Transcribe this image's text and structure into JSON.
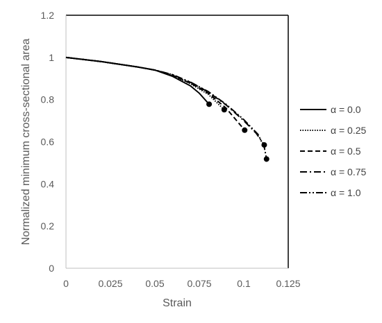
{
  "chart_data": {
    "type": "line",
    "xlabel": "Strain",
    "ylabel": "Normalized minimum cross-sectional area",
    "xlim": [
      0,
      0.125
    ],
    "ylim": [
      0,
      1.2
    ],
    "x_ticks": [
      "0",
      "0.025",
      "0.05",
      "0.075",
      "0.1",
      "0.125"
    ],
    "y_ticks": [
      "0",
      "0.2",
      "0.4",
      "0.6",
      "0.8",
      "1",
      "1.2"
    ],
    "grid": false,
    "legend_position": "right",
    "series": [
      {
        "name": "α = 0.0",
        "dash": "solid",
        "points": [
          [
            0,
            1.0
          ],
          [
            0.02,
            0.98
          ],
          [
            0.04,
            0.955
          ],
          [
            0.05,
            0.94
          ],
          [
            0.06,
            0.91
          ],
          [
            0.07,
            0.865
          ],
          [
            0.075,
            0.83
          ],
          [
            0.0805,
            0.778
          ]
        ],
        "end_marker": [
          0.0805,
          0.778
        ]
      },
      {
        "name": "α = 0.25",
        "dash": "dotted",
        "points": [
          [
            0,
            1.0
          ],
          [
            0.02,
            0.98
          ],
          [
            0.04,
            0.955
          ],
          [
            0.05,
            0.94
          ],
          [
            0.06,
            0.915
          ],
          [
            0.07,
            0.875
          ],
          [
            0.08,
            0.825
          ],
          [
            0.089,
            0.752
          ]
        ],
        "end_marker": [
          0.089,
          0.752
        ]
      },
      {
        "name": "α = 0.5",
        "dash": "dashed",
        "points": [
          [
            0,
            1.0
          ],
          [
            0.02,
            0.98
          ],
          [
            0.04,
            0.955
          ],
          [
            0.05,
            0.94
          ],
          [
            0.06,
            0.915
          ],
          [
            0.07,
            0.878
          ],
          [
            0.08,
            0.83
          ],
          [
            0.09,
            0.76
          ],
          [
            0.1005,
            0.655
          ]
        ],
        "end_marker": [
          0.1005,
          0.655
        ]
      },
      {
        "name": "α = 0.75",
        "dash": "dashdot",
        "points": [
          [
            0,
            1.0
          ],
          [
            0.02,
            0.98
          ],
          [
            0.04,
            0.955
          ],
          [
            0.05,
            0.94
          ],
          [
            0.06,
            0.918
          ],
          [
            0.07,
            0.882
          ],
          [
            0.08,
            0.836
          ],
          [
            0.09,
            0.775
          ],
          [
            0.1,
            0.7
          ],
          [
            0.107,
            0.64
          ],
          [
            0.1115,
            0.585
          ]
        ],
        "end_marker": [
          0.1115,
          0.585
        ]
      },
      {
        "name": "α = 1.0",
        "dash": "dashdotdot",
        "points": [
          [
            0,
            1.0
          ],
          [
            0.02,
            0.98
          ],
          [
            0.04,
            0.955
          ],
          [
            0.05,
            0.94
          ],
          [
            0.06,
            0.918
          ],
          [
            0.07,
            0.883
          ],
          [
            0.08,
            0.838
          ],
          [
            0.09,
            0.778
          ],
          [
            0.1,
            0.705
          ],
          [
            0.108,
            0.635
          ],
          [
            0.1115,
            0.575
          ],
          [
            0.1128,
            0.518
          ]
        ],
        "end_marker": [
          0.1128,
          0.518
        ]
      }
    ]
  }
}
